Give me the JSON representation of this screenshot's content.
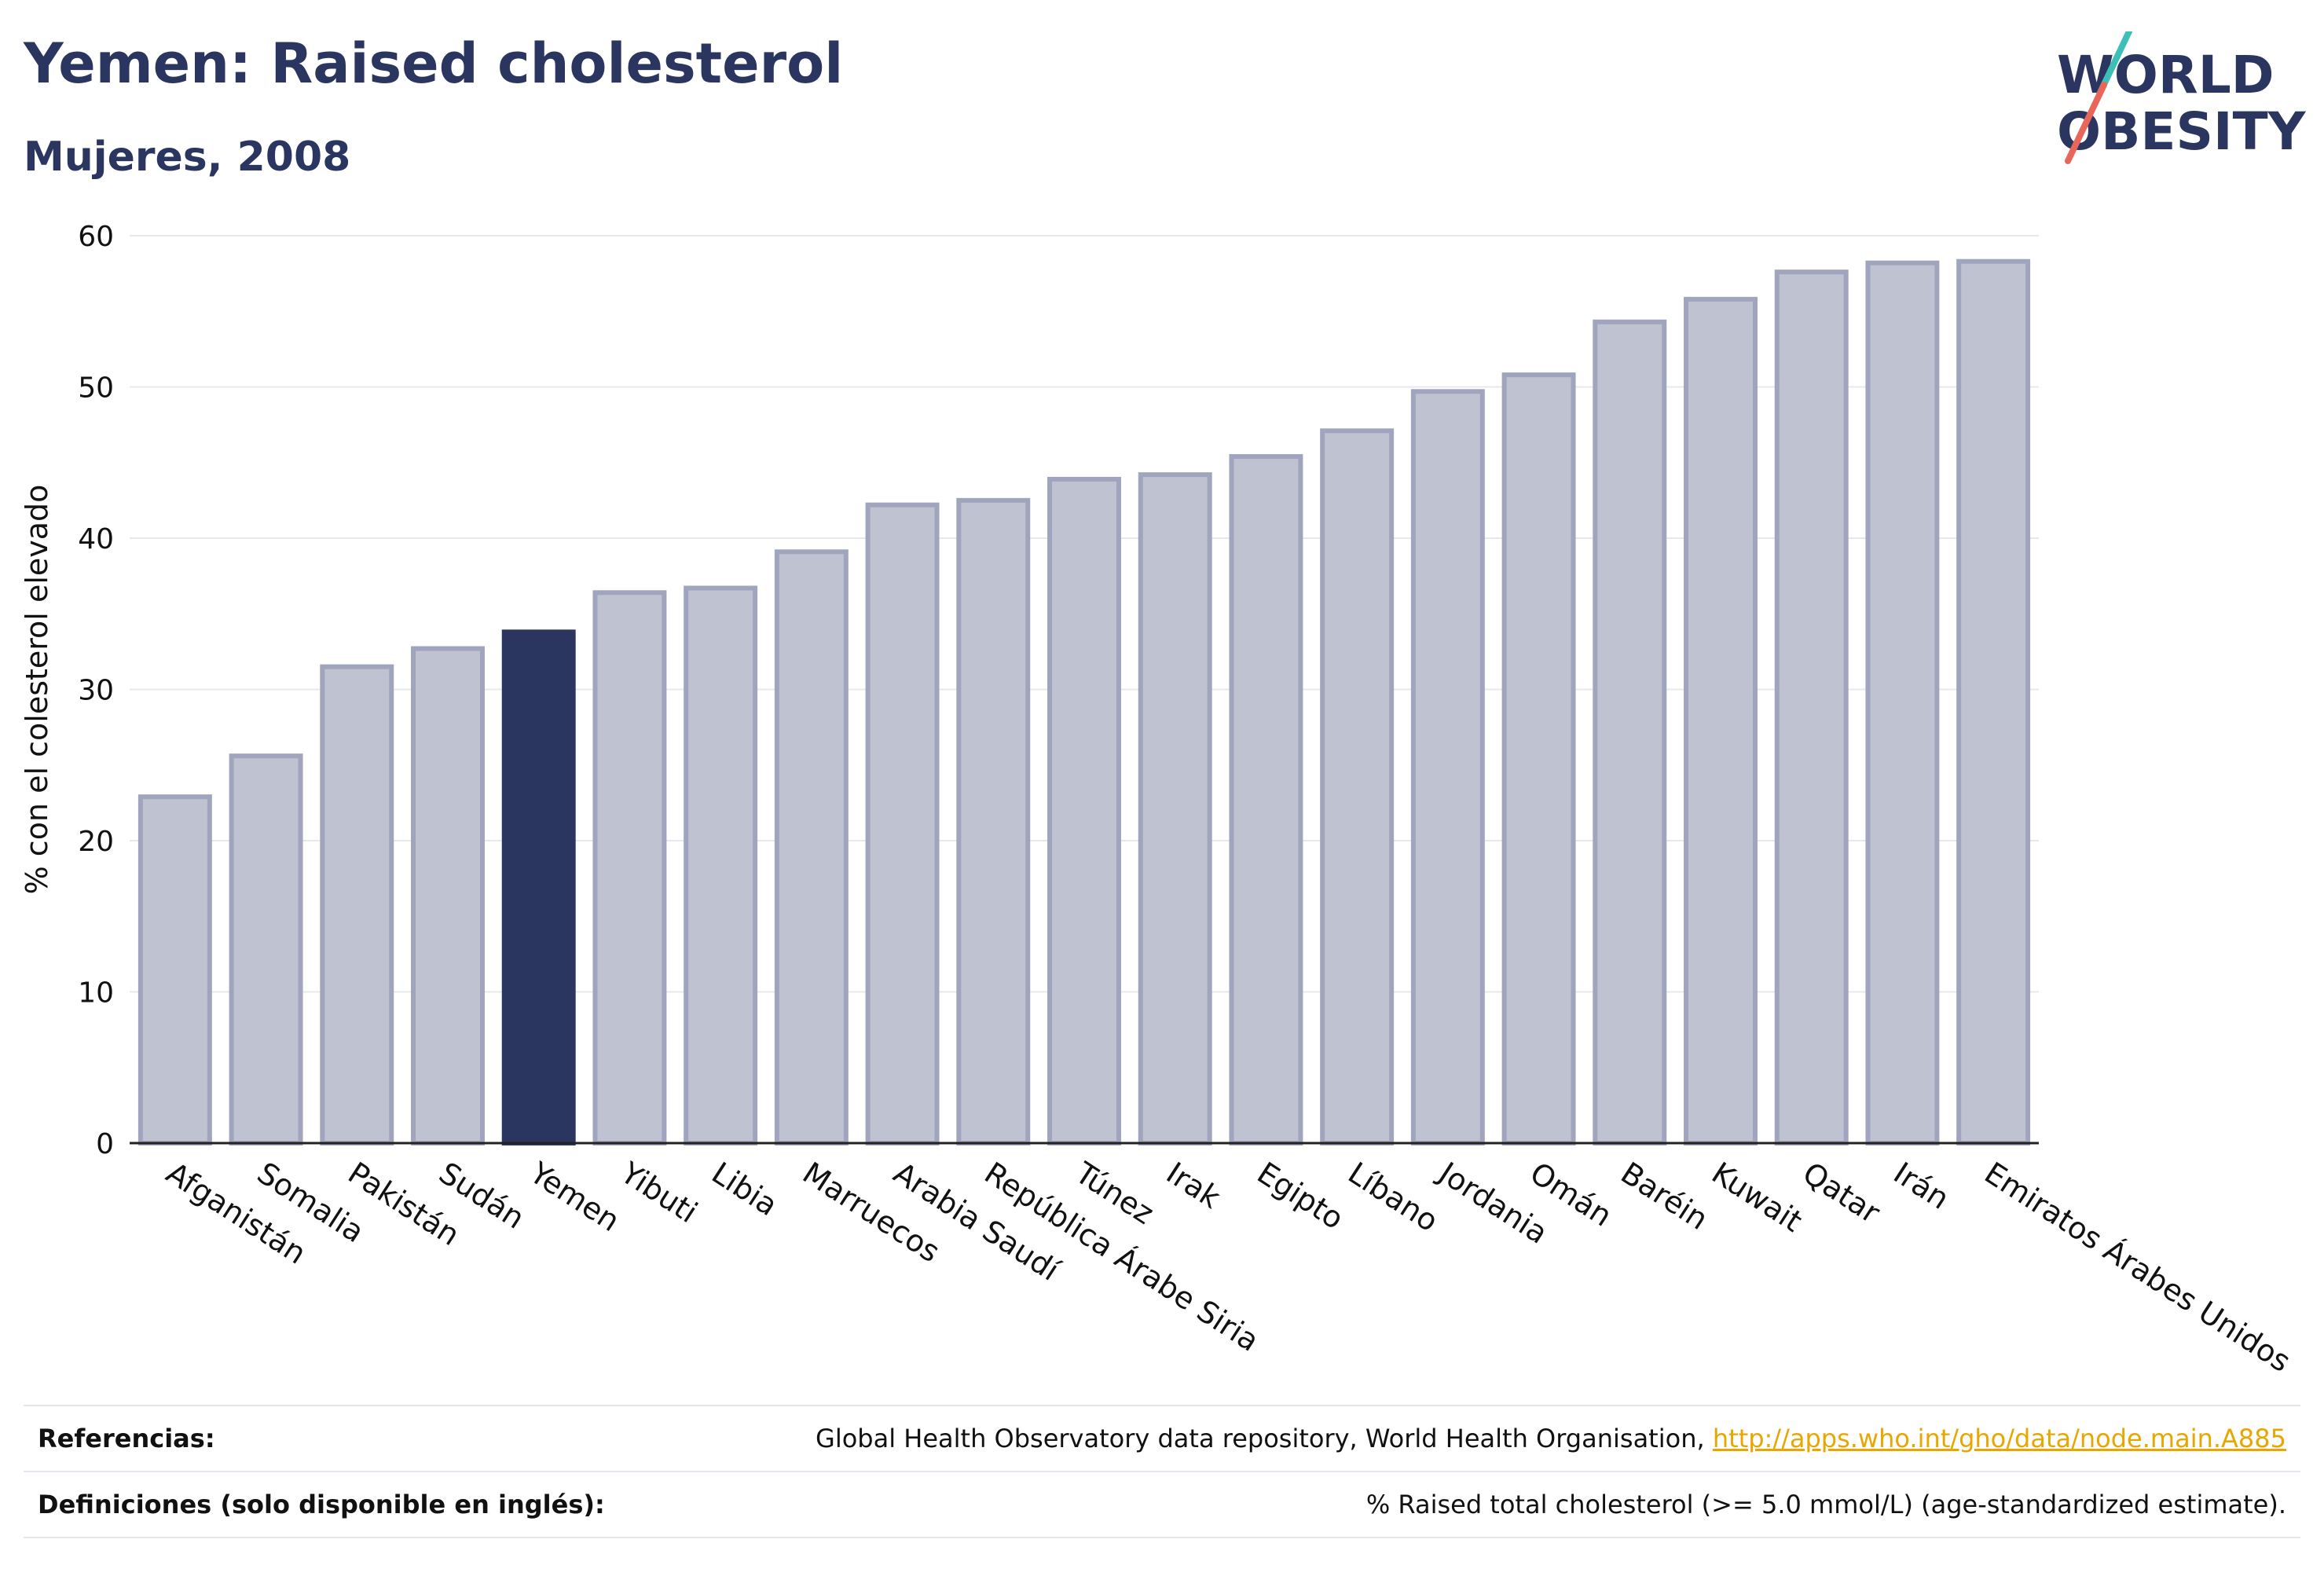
{
  "header": {
    "title": "Yemen: Raised cholesterol",
    "subtitle": "Mujeres, 2008"
  },
  "logo": {
    "line1": "WORLD",
    "line2": "OBESITY"
  },
  "chart_data": {
    "type": "bar",
    "ylabel": "% con el colesterol elevado",
    "xlabel": "",
    "ylim": [
      0,
      60
    ],
    "yticks": [
      0,
      10,
      20,
      30,
      40,
      50,
      60
    ],
    "grid": true,
    "categories": [
      "Afganistán",
      "Somalia",
      "Pakistán",
      "Sudán",
      "Yemen",
      "Yibuti",
      "Libia",
      "Marruecos",
      "Arabia Saudí",
      "República Árabe Siria",
      "Túnez",
      "Irak",
      "Egipto",
      "Líbano",
      "Jordania",
      "Omán",
      "Baréin",
      "Kuwait",
      "Qatar",
      "Irán",
      "Emiratos Árabes Unidos"
    ],
    "values": [
      22.9,
      25.6,
      31.5,
      32.7,
      33.8,
      36.4,
      36.7,
      39.1,
      42.2,
      42.5,
      43.9,
      44.2,
      45.4,
      47.1,
      49.7,
      50.8,
      54.3,
      55.8,
      57.6,
      58.2,
      58.3
    ],
    "highlight": "Yemen",
    "colors": {
      "bar": "#bfc2d1",
      "bar_border": "#a0a5bd",
      "highlight": "#2a3560"
    }
  },
  "footer": {
    "references_label": "Referencias:",
    "references_text": "Global Health Observatory data repository, World Health Organisation, ",
    "references_link": "http://apps.who.int/gho/data/node.main.A885",
    "definitions_label": "Definiciones (solo disponible en inglés):",
    "definitions_text": "% Raised total cholesterol (>= 5.0 mmol/L) (age-standardized estimate)."
  }
}
